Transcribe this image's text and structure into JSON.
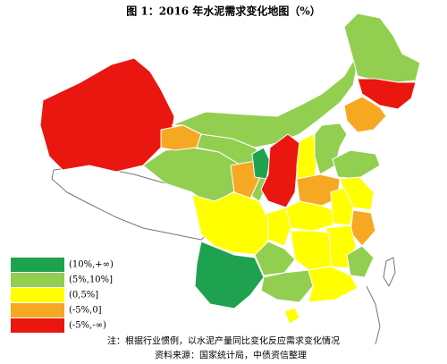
{
  "title": "图 1：2016 年水泥需求变化地图（%）",
  "legend": [
    {
      "label": "(10%,+∞)",
      "color": "#1fa24f"
    },
    {
      "label": "(5%,10%]",
      "color": "#92cf50"
    },
    {
      "label": "(0,5%]",
      "color": "#ffff00"
    },
    {
      "label": "(-5%,0]",
      "color": "#f7a823"
    },
    {
      "label": "(-5%,-∞)",
      "color": "#ea1610"
    }
  ],
  "notes": [
    "注：根据行业惯例，以水泥产量同比变化反应需求变化情况",
    "资料来源：国家统计局，中债资信整理"
  ]
}
